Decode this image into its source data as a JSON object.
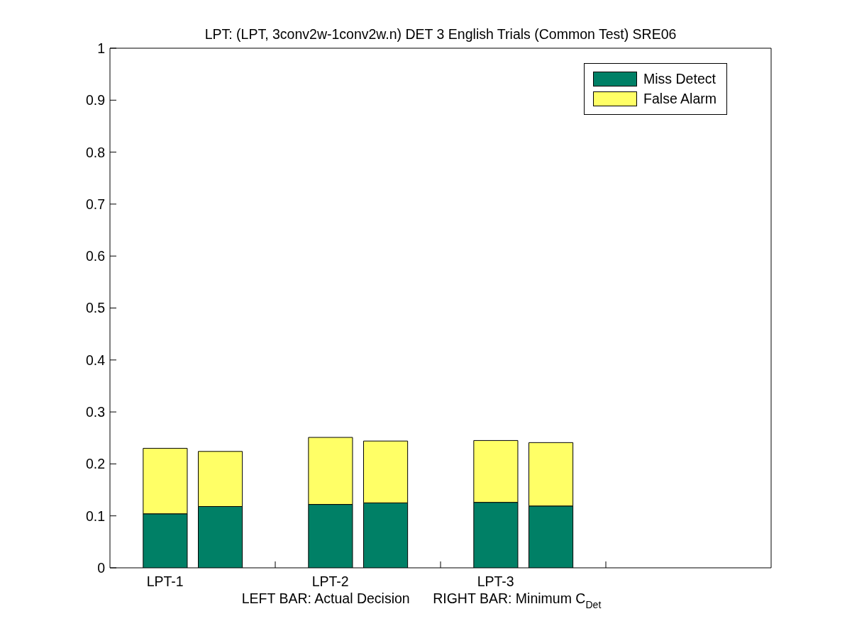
{
  "chart_data": {
    "type": "bar",
    "title": "LPT: (LPT, 3conv2w-1conv2w.n) DET 3 English Trials (Common Test) SRE06",
    "xlabel": "LEFT BAR: Actual Decision      RIGHT BAR: Minimum C$_{Det}$",
    "categories": [
      "LPT-1",
      null,
      null,
      "LPT-2",
      null,
      null,
      "LPT-3",
      null,
      null
    ],
    "ylim": [
      0,
      1
    ],
    "yticks": [
      0,
      0.1,
      0.2,
      0.3,
      0.4,
      0.5,
      0.6,
      0.7,
      0.8,
      0.9,
      1
    ],
    "stacked": true,
    "legend": "top right",
    "series": [
      {
        "name": "Miss Detect",
        "color": "#008066",
        "values": [
          0.104,
          0.118,
          null,
          0.122,
          0.125,
          null,
          0.126,
          0.119,
          null
        ]
      },
      {
        "name": "False Alarm",
        "color": "#ffff66",
        "values": [
          0.126,
          0.106,
          null,
          0.129,
          0.119,
          null,
          0.119,
          0.122,
          null
        ]
      }
    ]
  }
}
